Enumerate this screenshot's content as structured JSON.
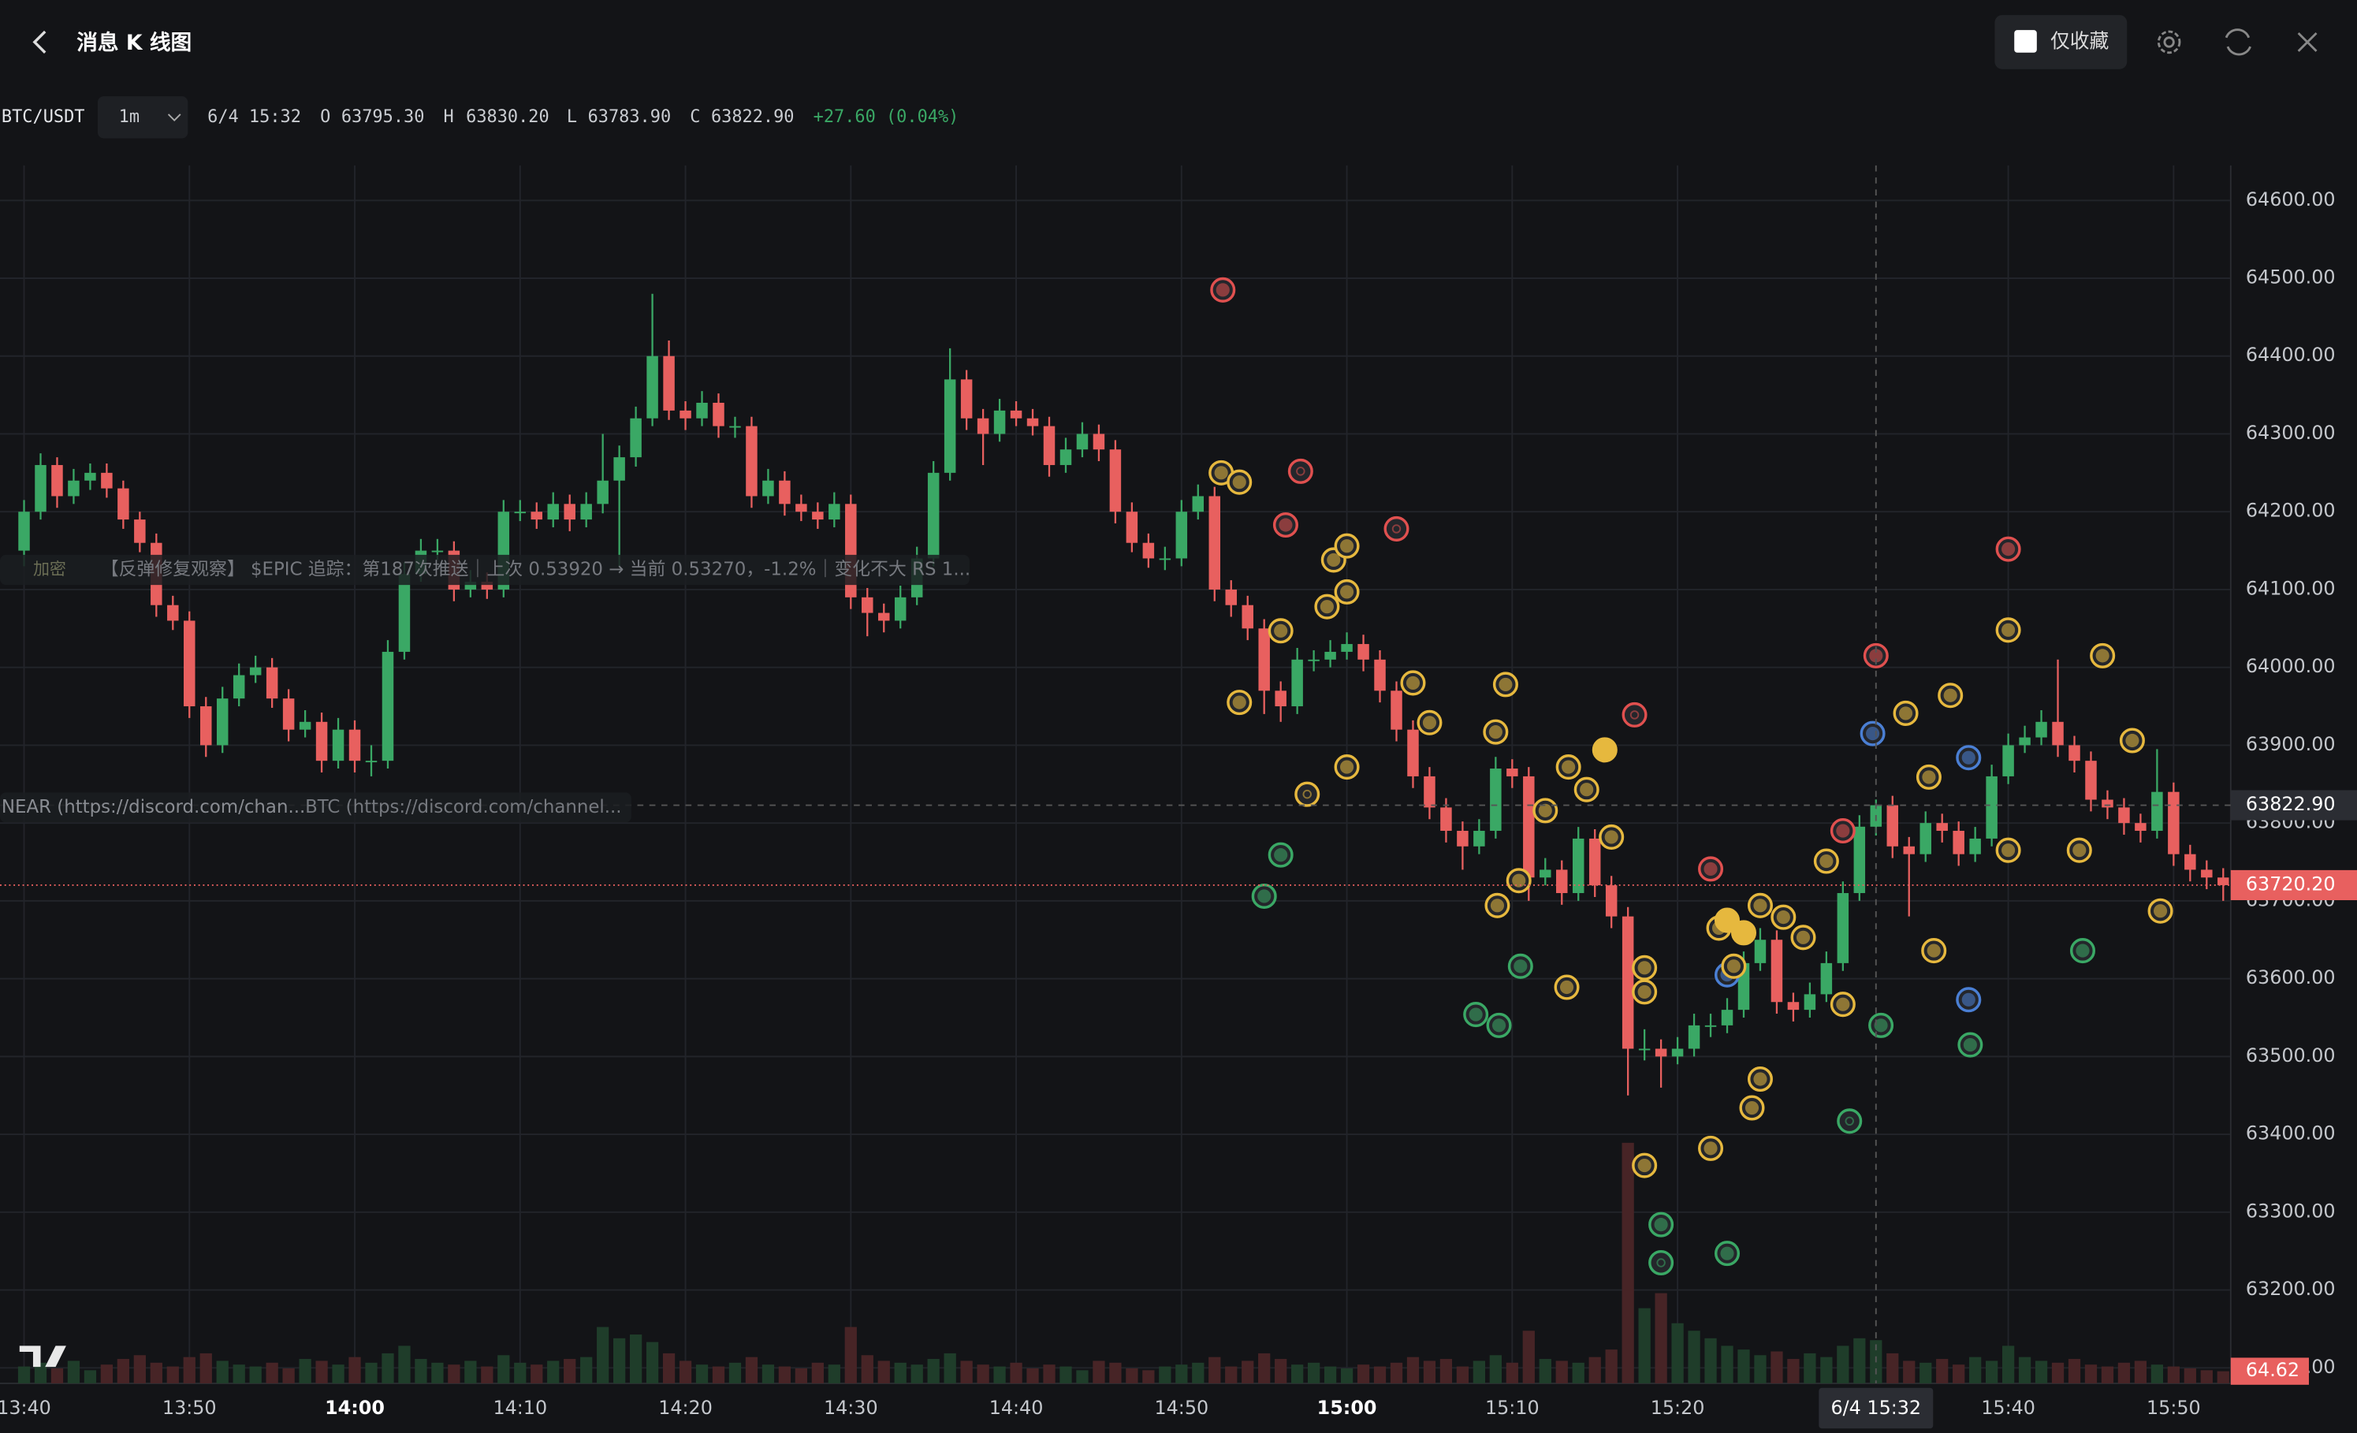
{
  "header": {
    "title": "消息 K 线图",
    "favorites_only": "仅收藏"
  },
  "legend": {
    "symbol": "BTC/USDT",
    "interval": "1m",
    "time": "6/4 15:32",
    "o": "O",
    "open": "63795.30",
    "h": "H",
    "high": "63830.20",
    "l": "L",
    "low": "63783.90",
    "c": "C",
    "close": "63822.90",
    "change": "+27.60 (0.04%)"
  },
  "overlays": {
    "news_1_tag": "加密",
    "news_1": "【反弹修复观察】 $EPIC 追踪：第187次推送｜上次 0.53920 → 当前 0.53270，-1.2%｜变化不大 RS 1...",
    "news_2": "NEAR (https://discord.com/chan...",
    "news_3": "BTC (https://discord.com/channel..."
  },
  "chart_data": {
    "type": "candlestick",
    "ohlc": [
      [
        64150,
        64215,
        64130,
        64200
      ],
      [
        64200,
        64275,
        64190,
        64260
      ],
      [
        64260,
        64270,
        64205,
        64220
      ],
      [
        64220,
        64255,
        64210,
        64240
      ],
      [
        64240,
        64262,
        64228,
        64250
      ],
      [
        64250,
        64262,
        64218,
        64230
      ],
      [
        64230,
        64240,
        64178,
        64190
      ],
      [
        64190,
        64200,
        64148,
        64160
      ],
      [
        64160,
        64172,
        64065,
        64080
      ],
      [
        64080,
        64092,
        64048,
        64060
      ],
      [
        64060,
        64072,
        63935,
        63950
      ],
      [
        63950,
        63962,
        63885,
        63900
      ],
      [
        63900,
        63975,
        63890,
        63960
      ],
      [
        63960,
        64005,
        63950,
        63990
      ],
      [
        63990,
        64015,
        63980,
        64000
      ],
      [
        64000,
        64012,
        63948,
        63960
      ],
      [
        63960,
        63972,
        63905,
        63920
      ],
      [
        63920,
        63945,
        63910,
        63930
      ],
      [
        63930,
        63942,
        63865,
        63880
      ],
      [
        63880,
        63935,
        63870,
        63920
      ],
      [
        63920,
        63932,
        63865,
        63880
      ],
      [
        63880,
        63900,
        63860,
        63880
      ],
      [
        63880,
        64035,
        63870,
        64020
      ],
      [
        64020,
        64135,
        64010,
        64120
      ],
      [
        64120,
        64165,
        64110,
        64150
      ],
      [
        64150,
        64165,
        64138,
        64150
      ],
      [
        64150,
        64162,
        64085,
        64100
      ],
      [
        64100,
        64125,
        64090,
        64110
      ],
      [
        64110,
        64122,
        64088,
        64100
      ],
      [
        64100,
        64215,
        64090,
        64200
      ],
      [
        64200,
        64215,
        64188,
        64200
      ],
      [
        64200,
        64212,
        64178,
        64190
      ],
      [
        64190,
        64225,
        64180,
        64210
      ],
      [
        64210,
        64222,
        64175,
        64190
      ],
      [
        64190,
        64225,
        64180,
        64210
      ],
      [
        64210,
        64300,
        64198,
        64240
      ],
      [
        64240,
        64285,
        64130,
        64270
      ],
      [
        64270,
        64335,
        64258,
        64320
      ],
      [
        64320,
        64480,
        64310,
        64400
      ],
      [
        64400,
        64420,
        64318,
        64330
      ],
      [
        64330,
        64342,
        64305,
        64320
      ],
      [
        64320,
        64355,
        64310,
        64340
      ],
      [
        64340,
        64352,
        64295,
        64310
      ],
      [
        64310,
        64322,
        64295,
        64310
      ],
      [
        64310,
        64322,
        64205,
        64220
      ],
      [
        64220,
        64255,
        64210,
        64240
      ],
      [
        64240,
        64252,
        64195,
        64210
      ],
      [
        64210,
        64222,
        64188,
        64200
      ],
      [
        64200,
        64212,
        64178,
        64190
      ],
      [
        64190,
        64225,
        64180,
        64210
      ],
      [
        64210,
        64222,
        64075,
        64090
      ],
      [
        64090,
        64102,
        64040,
        64070
      ],
      [
        64070,
        64082,
        64045,
        64060
      ],
      [
        64060,
        64105,
        64050,
        64090
      ],
      [
        64090,
        64155,
        64080,
        64140
      ],
      [
        64140,
        64265,
        64130,
        64250
      ],
      [
        64250,
        64410,
        64240,
        64370
      ],
      [
        64370,
        64382,
        64305,
        64320
      ],
      [
        64320,
        64332,
        64260,
        64300
      ],
      [
        64300,
        64345,
        64290,
        64330
      ],
      [
        64330,
        64342,
        64310,
        64320
      ],
      [
        64320,
        64332,
        64298,
        64310
      ],
      [
        64310,
        64322,
        64245,
        64260
      ],
      [
        64260,
        64295,
        64250,
        64280
      ],
      [
        64280,
        64315,
        64270,
        64300
      ],
      [
        64300,
        64312,
        64265,
        64280
      ],
      [
        64280,
        64292,
        64185,
        64200
      ],
      [
        64200,
        64212,
        64148,
        64160
      ],
      [
        64160,
        64172,
        64128,
        64140
      ],
      [
        64140,
        64155,
        64125,
        64140
      ],
      [
        64140,
        64215,
        64130,
        64200
      ],
      [
        64200,
        64235,
        64190,
        64220
      ],
      [
        64220,
        64232,
        64085,
        64100
      ],
      [
        64100,
        64112,
        64065,
        64080
      ],
      [
        64080,
        64092,
        64035,
        64050
      ],
      [
        64050,
        64062,
        63940,
        63970
      ],
      [
        63970,
        63982,
        63930,
        63950
      ],
      [
        63950,
        64025,
        63940,
        64010
      ],
      [
        64010,
        64022,
        63995,
        64010
      ],
      [
        64010,
        64035,
        64000,
        64020
      ],
      [
        64020,
        64045,
        64010,
        64030
      ],
      [
        64030,
        64042,
        63995,
        64010
      ],
      [
        64010,
        64022,
        63955,
        63970
      ],
      [
        63970,
        63982,
        63905,
        63920
      ],
      [
        63920,
        63932,
        63845,
        63860
      ],
      [
        63860,
        63872,
        63805,
        63820
      ],
      [
        63820,
        63832,
        63775,
        63790
      ],
      [
        63790,
        63802,
        63740,
        63770
      ],
      [
        63770,
        63805,
        63760,
        63790
      ],
      [
        63790,
        63885,
        63780,
        63870
      ],
      [
        63870,
        63882,
        63845,
        63860
      ],
      [
        63860,
        63872,
        63700,
        63730
      ],
      [
        63730,
        63755,
        63720,
        63740
      ],
      [
        63740,
        63752,
        63695,
        63710
      ],
      [
        63710,
        63795,
        63700,
        63780
      ],
      [
        63780,
        63792,
        63705,
        63720
      ],
      [
        63720,
        63732,
        63665,
        63680
      ],
      [
        63680,
        63692,
        63450,
        63510
      ],
      [
        63510,
        63535,
        63495,
        63510
      ],
      [
        63510,
        63522,
        63460,
        63500
      ],
      [
        63500,
        63525,
        63490,
        63510
      ],
      [
        63510,
        63555,
        63500,
        63540
      ],
      [
        63540,
        63555,
        63525,
        63540
      ],
      [
        63540,
        63575,
        63530,
        63560
      ],
      [
        63560,
        63635,
        63550,
        63620
      ],
      [
        63620,
        63665,
        63610,
        63650
      ],
      [
        63650,
        63662,
        63555,
        63570
      ],
      [
        63570,
        63582,
        63545,
        63560
      ],
      [
        63560,
        63595,
        63550,
        63580
      ],
      [
        63580,
        63635,
        63570,
        63620
      ],
      [
        63620,
        63725,
        63610,
        63710
      ],
      [
        63710,
        63810,
        63700,
        63795.3
      ],
      [
        63795.3,
        63830.2,
        63783.9,
        63822.9
      ],
      [
        63822.9,
        63835,
        63755,
        63770
      ],
      [
        63770,
        63782,
        63680,
        63760
      ],
      [
        63760,
        63815,
        63750,
        63800
      ],
      [
        63800,
        63812,
        63775,
        63790
      ],
      [
        63790,
        63802,
        63745,
        63760
      ],
      [
        63760,
        63795,
        63750,
        63780
      ],
      [
        63780,
        63875,
        63770,
        63860
      ],
      [
        63860,
        63915,
        63850,
        63900
      ],
      [
        63900,
        63925,
        63890,
        63910
      ],
      [
        63910,
        63945,
        63900,
        63930
      ],
      [
        63930,
        64010,
        63885,
        63900
      ],
      [
        63900,
        63912,
        63865,
        63880
      ],
      [
        63880,
        63892,
        63815,
        63830
      ],
      [
        63830,
        63842,
        63805,
        63820
      ],
      [
        63820,
        63832,
        63785,
        63800
      ],
      [
        63800,
        63812,
        63775,
        63790
      ],
      [
        63790,
        63895,
        63780,
        63840
      ],
      [
        63840,
        63852,
        63745,
        63760
      ],
      [
        63760,
        63772,
        63725,
        63740
      ],
      [
        63740,
        63752,
        63715,
        63730
      ],
      [
        63730,
        63742,
        63700,
        63720.2
      ]
    ],
    "volume": [
      90,
      110,
      80,
      120,
      70,
      100,
      130,
      150,
      110,
      90,
      140,
      160,
      120,
      100,
      90,
      110,
      80,
      130,
      120,
      100,
      140,
      110,
      160,
      200,
      130,
      110,
      100,
      120,
      90,
      150,
      110,
      100,
      120,
      130,
      140,
      300,
      240,
      260,
      220,
      160,
      120,
      100,
      90,
      110,
      140,
      100,
      90,
      80,
      110,
      100,
      300,
      150,
      120,
      110,
      100,
      130,
      160,
      120,
      100,
      90,
      110,
      80,
      100,
      90,
      70,
      120,
      110,
      80,
      70,
      90,
      100,
      110,
      140,
      90,
      120,
      160,
      130,
      100,
      110,
      90,
      80,
      100,
      90,
      110,
      140,
      120,
      130,
      90,
      120,
      150,
      110,
      280,
      130,
      120,
      110,
      140,
      180,
      1280,
      400,
      480,
      320,
      280,
      240,
      200,
      180,
      150,
      170,
      130,
      160,
      140,
      200,
      240,
      230,
      160,
      120,
      110,
      130,
      100,
      140,
      120,
      200,
      140,
      120,
      110,
      130,
      100,
      90,
      110,
      120,
      100,
      90,
      80,
      70,
      64.62
    ],
    "volume_label": "64.62",
    "up_color": "#3aa865",
    "down_color": "#e8605f",
    "ylim": [
      63080,
      64645
    ],
    "yticks": [
      {
        "value": 64600,
        "label": "64600.00"
      },
      {
        "value": 64500,
        "label": "64500.00"
      },
      {
        "value": 64400,
        "label": "64400.00"
      },
      {
        "value": 64300,
        "label": "64300.00"
      },
      {
        "value": 64200,
        "label": "64200.00"
      },
      {
        "value": 64100,
        "label": "64100.00"
      },
      {
        "value": 64000,
        "label": "64000.00"
      },
      {
        "value": 63900,
        "label": "63900.00"
      },
      {
        "value": 63800,
        "label": "63800.00"
      },
      {
        "value": 63700,
        "label": "63700.00"
      },
      {
        "value": 63600,
        "label": "63600.00"
      },
      {
        "value": 63500,
        "label": "63500.00"
      },
      {
        "value": 63400,
        "label": "63400.00"
      },
      {
        "value": 63300,
        "label": "63300.00"
      },
      {
        "value": 63200,
        "label": "63200.00"
      },
      {
        "value": 63100,
        "label": "63100.00"
      }
    ],
    "xticks": [
      {
        "value": 0,
        "label": "13:40"
      },
      {
        "value": 10,
        "label": "13:50"
      },
      {
        "value": 20,
        "label": "14:00",
        "major": true
      },
      {
        "value": 30,
        "label": "14:10"
      },
      {
        "value": 40,
        "label": "14:20"
      },
      {
        "value": 50,
        "label": "14:30"
      },
      {
        "value": 60,
        "label": "14:40"
      },
      {
        "value": 70,
        "label": "14:50"
      },
      {
        "value": 80,
        "label": "15:00",
        "major": true
      },
      {
        "value": 90,
        "label": "15:10"
      },
      {
        "value": 100,
        "label": "15:20"
      },
      {
        "value": 120,
        "label": "15:40"
      },
      {
        "value": 130,
        "label": "15:50"
      }
    ],
    "grid": true,
    "crosshair": {
      "index": 112,
      "price": 63822.9,
      "price_label": "63822.90"
    },
    "last_price": 63720.2,
    "last_price_label": "63720.20",
    "markers": [
      [
        72.5,
        64485,
        "red"
      ],
      [
        72.4,
        64250,
        "gold"
      ],
      [
        73.5,
        64238,
        "gold"
      ],
      [
        77.2,
        64252,
        "red-ring"
      ],
      [
        76.3,
        64183,
        "red"
      ],
      [
        83,
        64178,
        "red-ring"
      ],
      [
        79.2,
        64138,
        "gold"
      ],
      [
        80,
        64156,
        "gold"
      ],
      [
        80,
        64097,
        "gold"
      ],
      [
        78.8,
        64078,
        "gold"
      ],
      [
        76,
        64047,
        "gold"
      ],
      [
        73.5,
        63955,
        "gold"
      ],
      [
        84,
        63980,
        "gold"
      ],
      [
        85,
        63929,
        "gold"
      ],
      [
        89.6,
        63978,
        "gold"
      ],
      [
        89,
        63917,
        "gold"
      ],
      [
        97.4,
        63939,
        "red-ring"
      ],
      [
        95.6,
        63894,
        "gold-solid"
      ],
      [
        80,
        63872,
        "gold"
      ],
      [
        77.6,
        63837,
        "gold-ring"
      ],
      [
        93.4,
        63872,
        "gold"
      ],
      [
        92,
        63816,
        "gold"
      ],
      [
        94.5,
        63843,
        "gold"
      ],
      [
        96,
        63782,
        "gold"
      ],
      [
        76,
        63759,
        "green"
      ],
      [
        75,
        63706,
        "green"
      ],
      [
        90.4,
        63726,
        "gold"
      ],
      [
        89.1,
        63694,
        "gold"
      ],
      [
        90.5,
        63616,
        "green"
      ],
      [
        93.3,
        63589,
        "gold"
      ],
      [
        87.8,
        63554,
        "green"
      ],
      [
        89.2,
        63540,
        "green"
      ],
      [
        98,
        63614,
        "gold"
      ],
      [
        98,
        63583,
        "gold"
      ],
      [
        102,
        63741,
        "red"
      ],
      [
        102.5,
        63665,
        "gold"
      ],
      [
        103,
        63675,
        "gold-solid"
      ],
      [
        104,
        63659,
        "gold-solid"
      ],
      [
        105,
        63694,
        "gold"
      ],
      [
        106.4,
        63679,
        "gold"
      ],
      [
        107.6,
        63653,
        "gold"
      ],
      [
        103,
        63605,
        "blue"
      ],
      [
        103.4,
        63616,
        "gold"
      ],
      [
        105,
        63471,
        "gold"
      ],
      [
        104.5,
        63434,
        "gold"
      ],
      [
        102,
        63382,
        "gold"
      ],
      [
        98,
        63360,
        "gold"
      ],
      [
        99,
        63284,
        "green"
      ],
      [
        99,
        63235,
        "green-ring"
      ],
      [
        103,
        63247,
        "green"
      ],
      [
        110,
        63567,
        "gold"
      ],
      [
        109,
        63751,
        "gold"
      ],
      [
        110,
        63790,
        "red"
      ],
      [
        112.3,
        63540,
        "green"
      ],
      [
        110.4,
        63417,
        "green-ring"
      ],
      [
        112,
        64015,
        "red"
      ],
      [
        111.8,
        63915,
        "blue"
      ],
      [
        113.8,
        63941,
        "gold"
      ],
      [
        115.2,
        63859,
        "gold"
      ],
      [
        116.5,
        63964,
        "gold"
      ],
      [
        117.6,
        63884,
        "blue"
      ],
      [
        115.5,
        63636,
        "gold"
      ],
      [
        117.6,
        63573,
        "blue"
      ],
      [
        117.7,
        63515,
        "green"
      ],
      [
        120,
        63765,
        "gold"
      ],
      [
        120,
        64048,
        "gold"
      ],
      [
        120,
        64152,
        "red"
      ],
      [
        125.7,
        64015,
        "gold"
      ],
      [
        124.3,
        63765,
        "gold"
      ],
      [
        124.5,
        63636,
        "green"
      ],
      [
        127.5,
        63906,
        "gold"
      ],
      [
        129.2,
        63687,
        "gold"
      ]
    ]
  }
}
